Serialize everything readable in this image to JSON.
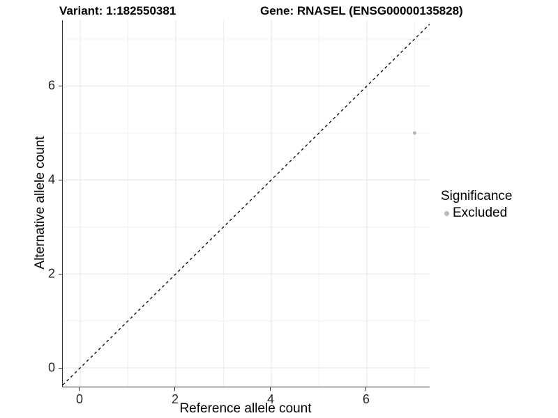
{
  "figure": {
    "title_left": "Variant: 1:182550381",
    "title_right": "Gene: RNASEL (ENSG00000135828)"
  },
  "chart_data": {
    "type": "scatter",
    "title": "Variant: 1:182550381  /  Gene: RNASEL (ENSG00000135828)",
    "xlabel": "Reference allele count",
    "ylabel": "Alternative allele count",
    "xlim": [
      -0.365,
      7.315
    ],
    "ylim": [
      -0.4,
      7.4
    ],
    "x_ticks": [
      0,
      2,
      4,
      6
    ],
    "y_ticks": [
      0,
      2,
      4,
      6
    ],
    "x_minor_breaks": [
      1,
      3,
      5,
      7
    ],
    "y_minor_breaks": [
      1,
      3,
      5,
      7
    ],
    "grid": "on",
    "points": [
      {
        "x": 7,
        "y": 5,
        "series": "Excluded"
      }
    ],
    "identity_line": {
      "slope": 1,
      "intercept": 0,
      "style": "dashed",
      "color": "#000000"
    },
    "legend": {
      "title": "Significance",
      "position": "right",
      "items": [
        {
          "label": "Excluded",
          "color": "#b9b9b9"
        }
      ]
    },
    "colors": {
      "point": "#b9b9b9",
      "grid_major": "#e4e4e4",
      "grid_minor": "#f0f0f0",
      "axis_line": "#2b2b2b",
      "background": "#ffffff"
    }
  }
}
